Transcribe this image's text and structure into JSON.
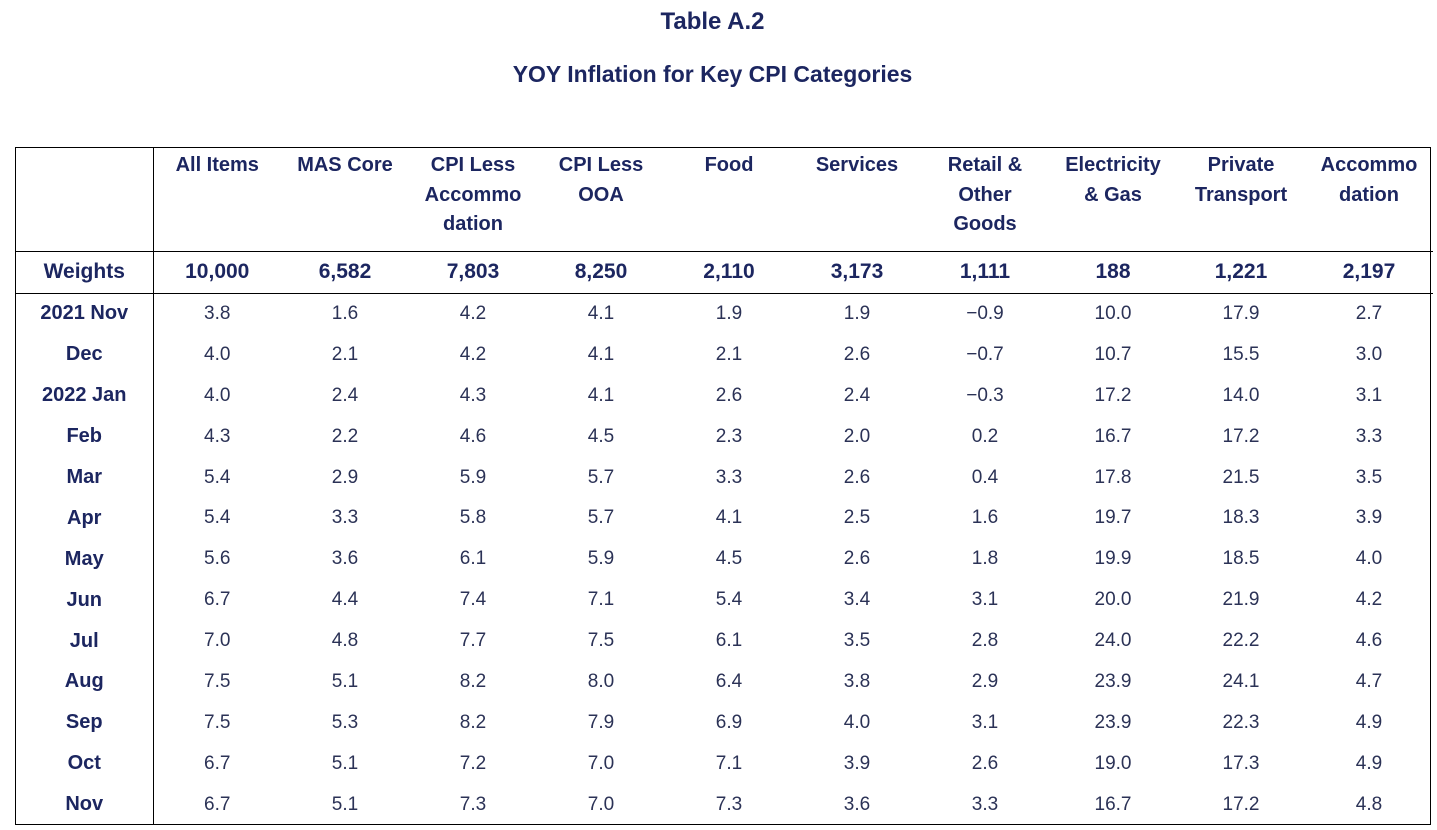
{
  "title": "Table A.2",
  "subtitle": "YOY Inflation for Key CPI Categories",
  "columns": [
    "All Items",
    "MAS Core",
    "CPI Less Accommo dation",
    "CPI Less OOA",
    "Food",
    "Services",
    "Retail & Other Goods",
    "Electricity & Gas",
    "Private Transport",
    "Accommo dation"
  ],
  "columns_display": [
    [
      "All Items"
    ],
    [
      "MAS Core"
    ],
    [
      "CPI Less",
      "Accommo",
      "dation"
    ],
    [
      "CPI Less",
      "OOA"
    ],
    [
      "Food"
    ],
    [
      "Services"
    ],
    [
      "Retail &",
      "Other",
      "Goods"
    ],
    [
      "Electricity",
      "& Gas"
    ],
    [
      "Private",
      "Transport"
    ],
    [
      "Accommo",
      "dation"
    ]
  ],
  "weights": {
    "label": "Weights",
    "values": [
      "10,000",
      "6,582",
      "7,803",
      "8,250",
      "2,110",
      "3,173",
      "1,111",
      "188",
      "1,221",
      "2,197"
    ]
  },
  "rows": [
    {
      "label": "2021 Nov",
      "values": [
        "3.8",
        "1.6",
        "4.2",
        "4.1",
        "1.9",
        "1.9",
        "−0.9",
        "10.0",
        "17.9",
        "2.7"
      ]
    },
    {
      "label": "Dec",
      "values": [
        "4.0",
        "2.1",
        "4.2",
        "4.1",
        "2.1",
        "2.6",
        "−0.7",
        "10.7",
        "15.5",
        "3.0"
      ]
    },
    {
      "label": "2022 Jan",
      "values": [
        "4.0",
        "2.4",
        "4.3",
        "4.1",
        "2.6",
        "2.4",
        "−0.3",
        "17.2",
        "14.0",
        "3.1"
      ]
    },
    {
      "label": "Feb",
      "values": [
        "4.3",
        "2.2",
        "4.6",
        "4.5",
        "2.3",
        "2.0",
        "0.2",
        "16.7",
        "17.2",
        "3.3"
      ]
    },
    {
      "label": "Mar",
      "values": [
        "5.4",
        "2.9",
        "5.9",
        "5.7",
        "3.3",
        "2.6",
        "0.4",
        "17.8",
        "21.5",
        "3.5"
      ]
    },
    {
      "label": "Apr",
      "values": [
        "5.4",
        "3.3",
        "5.8",
        "5.7",
        "4.1",
        "2.5",
        "1.6",
        "19.7",
        "18.3",
        "3.9"
      ]
    },
    {
      "label": "May",
      "values": [
        "5.6",
        "3.6",
        "6.1",
        "5.9",
        "4.5",
        "2.6",
        "1.8",
        "19.9",
        "18.5",
        "4.0"
      ]
    },
    {
      "label": "Jun",
      "values": [
        "6.7",
        "4.4",
        "7.4",
        "7.1",
        "5.4",
        "3.4",
        "3.1",
        "20.0",
        "21.9",
        "4.2"
      ]
    },
    {
      "label": "Jul",
      "values": [
        "7.0",
        "4.8",
        "7.7",
        "7.5",
        "6.1",
        "3.5",
        "2.8",
        "24.0",
        "22.2",
        "4.6"
      ]
    },
    {
      "label": "Aug",
      "values": [
        "7.5",
        "5.1",
        "8.2",
        "8.0",
        "6.4",
        "3.8",
        "2.9",
        "23.9",
        "24.1",
        "4.7"
      ]
    },
    {
      "label": "Sep",
      "values": [
        "7.5",
        "5.3",
        "8.2",
        "7.9",
        "6.9",
        "4.0",
        "3.1",
        "23.9",
        "22.3",
        "4.9"
      ]
    },
    {
      "label": "Oct",
      "values": [
        "6.7",
        "5.1",
        "7.2",
        "7.0",
        "7.1",
        "3.9",
        "2.6",
        "19.0",
        "17.3",
        "4.9"
      ]
    },
    {
      "label": "Nov",
      "values": [
        "6.7",
        "5.1",
        "7.3",
        "7.0",
        "7.3",
        "3.6",
        "3.3",
        "16.7",
        "17.2",
        "4.8"
      ]
    }
  ],
  "colors": {
    "heading_text": "#1c2660",
    "value_text": "#2b3256",
    "rule": "#000000"
  }
}
